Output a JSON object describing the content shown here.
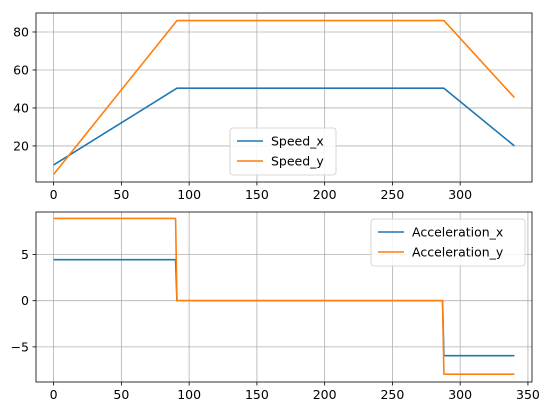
{
  "chart_data": [
    {
      "type": "line",
      "xlim": [
        -13,
        353
      ],
      "ylim": [
        1,
        90
      ],
      "xticks": [
        0,
        50,
        100,
        150,
        200,
        250,
        300
      ],
      "yticks": [
        20,
        40,
        60,
        80
      ],
      "grid": true,
      "legend": "lower-center",
      "series": [
        {
          "name": "Speed_x",
          "color": "#1f77b4",
          "x": [
            0,
            91,
            288,
            340
          ],
          "y": [
            10,
            50.4,
            50.4,
            20
          ]
        },
        {
          "name": "Speed_y",
          "color": "#ff7f0e",
          "x": [
            0,
            91,
            288,
            340
          ],
          "y": [
            5,
            86,
            86,
            45.5
          ]
        }
      ]
    },
    {
      "type": "line",
      "xlim": [
        -13,
        353
      ],
      "ylim": [
        -8.8,
        9.6
      ],
      "xticks": [
        0,
        50,
        100,
        150,
        200,
        250,
        300,
        350
      ],
      "yticks": [
        -5,
        0,
        5
      ],
      "grid": true,
      "legend": "upper-right",
      "series": [
        {
          "name": "Acceleration_x",
          "color": "#1f77b4",
          "x": [
            0,
            90,
            91,
            287,
            288,
            340
          ],
          "y": [
            4.44,
            4.44,
            0,
            0,
            -5.95,
            -5.95
          ]
        },
        {
          "name": "Acceleration_y",
          "color": "#ff7f0e",
          "x": [
            0,
            90,
            91,
            287,
            288,
            340
          ],
          "y": [
            8.9,
            8.9,
            0,
            0,
            -7.95,
            -7.95
          ]
        }
      ]
    }
  ]
}
